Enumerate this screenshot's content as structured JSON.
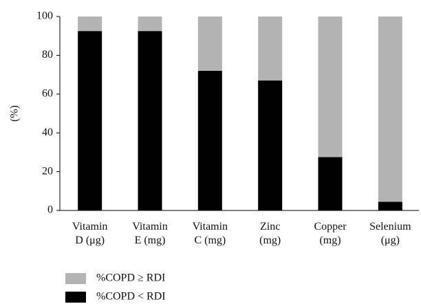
{
  "chart_data": {
    "type": "stacked_bar",
    "ylabel": "(%)",
    "categories": [
      "Vitamin\nD (μg)",
      "Vitamin\nE (mg)",
      "Vitamin\nC (mg)",
      "Zinc\n(mg)",
      "Copper\n(mg)",
      "Selenium\n(μg)"
    ],
    "series": [
      {
        "name": "%COPD < RDI",
        "color": "#000000",
        "values": [
          92.5,
          92.5,
          72,
          67,
          27.5,
          4.5
        ]
      },
      {
        "name": "%COPD ≥ RDI",
        "color": "#b3b3b3",
        "values": [
          7.5,
          7.5,
          28,
          33,
          72.5,
          95.5
        ]
      }
    ],
    "ylim": [
      0,
      100
    ],
    "yticks": [
      0,
      20,
      40,
      60,
      80,
      100
    ],
    "grid": false
  }
}
